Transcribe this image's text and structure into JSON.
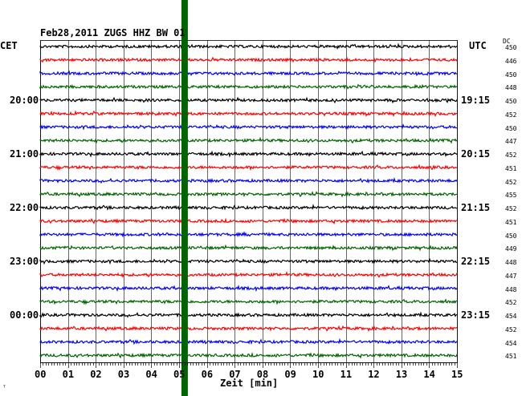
{
  "header": {
    "title": "Feb28,2011   ZUGS HHZ BW 01",
    "left_tz": "CET",
    "right_tz": "UTC",
    "dc_header": "DC"
  },
  "footer": {
    "x_axis_label": "Zeit [min]",
    "corner_mark": "ᵀ"
  },
  "chart_data": {
    "type": "line",
    "title": "Feb28,2011   ZUGS HHZ BW 01",
    "xlabel": "Zeit [min]",
    "ylabel": "",
    "x_ticks": [
      "00",
      "01",
      "02",
      "03",
      "04",
      "05",
      "06",
      "07",
      "08",
      "09",
      "10",
      "11",
      "12",
      "13",
      "14",
      "15"
    ],
    "xlim": [
      0,
      15
    ],
    "grid": true,
    "trace_colors": [
      "#000000",
      "#ff0000",
      "#0000ff",
      "#006400"
    ],
    "highlight_band_color": "#006400",
    "highlight_band_minute": 5.2,
    "left_time_labels": [
      {
        "label": "20:00",
        "row": 4
      },
      {
        "label": "21:00",
        "row": 8
      },
      {
        "label": "22:00",
        "row": 12
      },
      {
        "label": "23:00",
        "row": 16
      },
      {
        "label": "00:00",
        "row": 20
      }
    ],
    "right_time_labels": [
      {
        "label": "19:15",
        "row": 4
      },
      {
        "label": "20:15",
        "row": 8
      },
      {
        "label": "21:15",
        "row": 12
      },
      {
        "label": "22:15",
        "row": 16
      },
      {
        "label": "23:15",
        "row": 20
      }
    ],
    "dc_values": [
      "450",
      "446",
      "450",
      "448",
      "450",
      "452",
      "450",
      "447",
      "452",
      "451",
      "452",
      "455",
      "452",
      "451",
      "450",
      "449",
      "448",
      "447",
      "448",
      "452",
      "454",
      "452",
      "454",
      "451"
    ]
  }
}
